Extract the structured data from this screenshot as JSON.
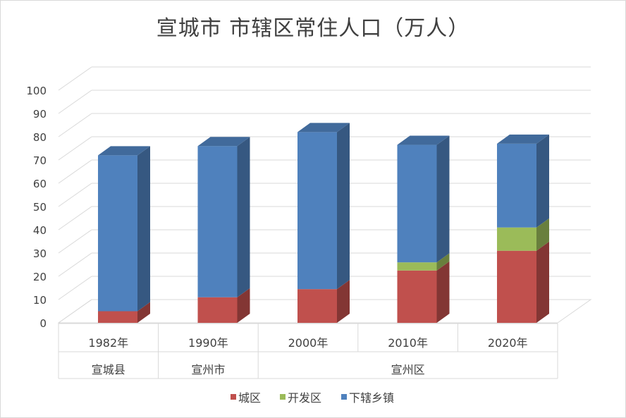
{
  "chart_data": {
    "type": "bar",
    "stacked": true,
    "three_d": true,
    "title": "宣城市 市辖区常住人口（万人）",
    "categories": [
      "1982年",
      "1990年",
      "2000年",
      "2010年",
      "2020年"
    ],
    "category_groups": [
      {
        "label": "宣城县",
        "span": 1
      },
      {
        "label": "宣州市",
        "span": 1
      },
      {
        "label": "宣州区",
        "span": 3
      }
    ],
    "series": [
      {
        "name": "城区",
        "color": "#c0504d",
        "values": [
          5,
          11,
          14.5,
          22.5,
          31
        ]
      },
      {
        "name": "开发区",
        "color": "#9bbb59",
        "values": [
          0,
          0,
          0,
          3.5,
          10
        ]
      },
      {
        "name": "下辖乡镇",
        "color": "#4f81bd",
        "values": [
          67,
          65,
          67.5,
          50.5,
          36
        ]
      }
    ],
    "ylim": [
      0,
      100
    ],
    "yticks": [
      "0",
      "10",
      "20",
      "30",
      "40",
      "50",
      "60",
      "70",
      "80",
      "90",
      "100"
    ],
    "grid": true,
    "legend_position": "bottom"
  }
}
